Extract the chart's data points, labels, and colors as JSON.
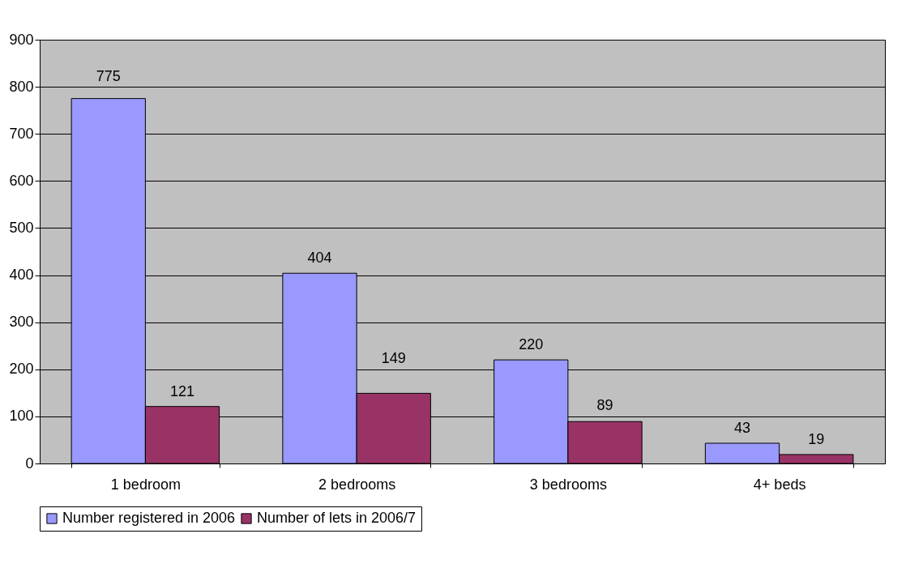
{
  "chart_data": {
    "type": "bar",
    "categories": [
      "1 bedroom",
      "2 bedrooms",
      "3 bedrooms",
      "4+ beds"
    ],
    "series": [
      {
        "name": "Number registered in 2006",
        "color": "#9999ff",
        "values": [
          775,
          404,
          220,
          43
        ]
      },
      {
        "name": "Number of lets in 2006/7",
        "color": "#993366",
        "values": [
          121,
          149,
          89,
          19
        ]
      }
    ],
    "ylim": [
      0,
      900
    ],
    "yticks": [
      0,
      100,
      200,
      300,
      400,
      500,
      600,
      700,
      800,
      900
    ],
    "grid": "y",
    "legend": "bottom",
    "data_labels": true
  }
}
